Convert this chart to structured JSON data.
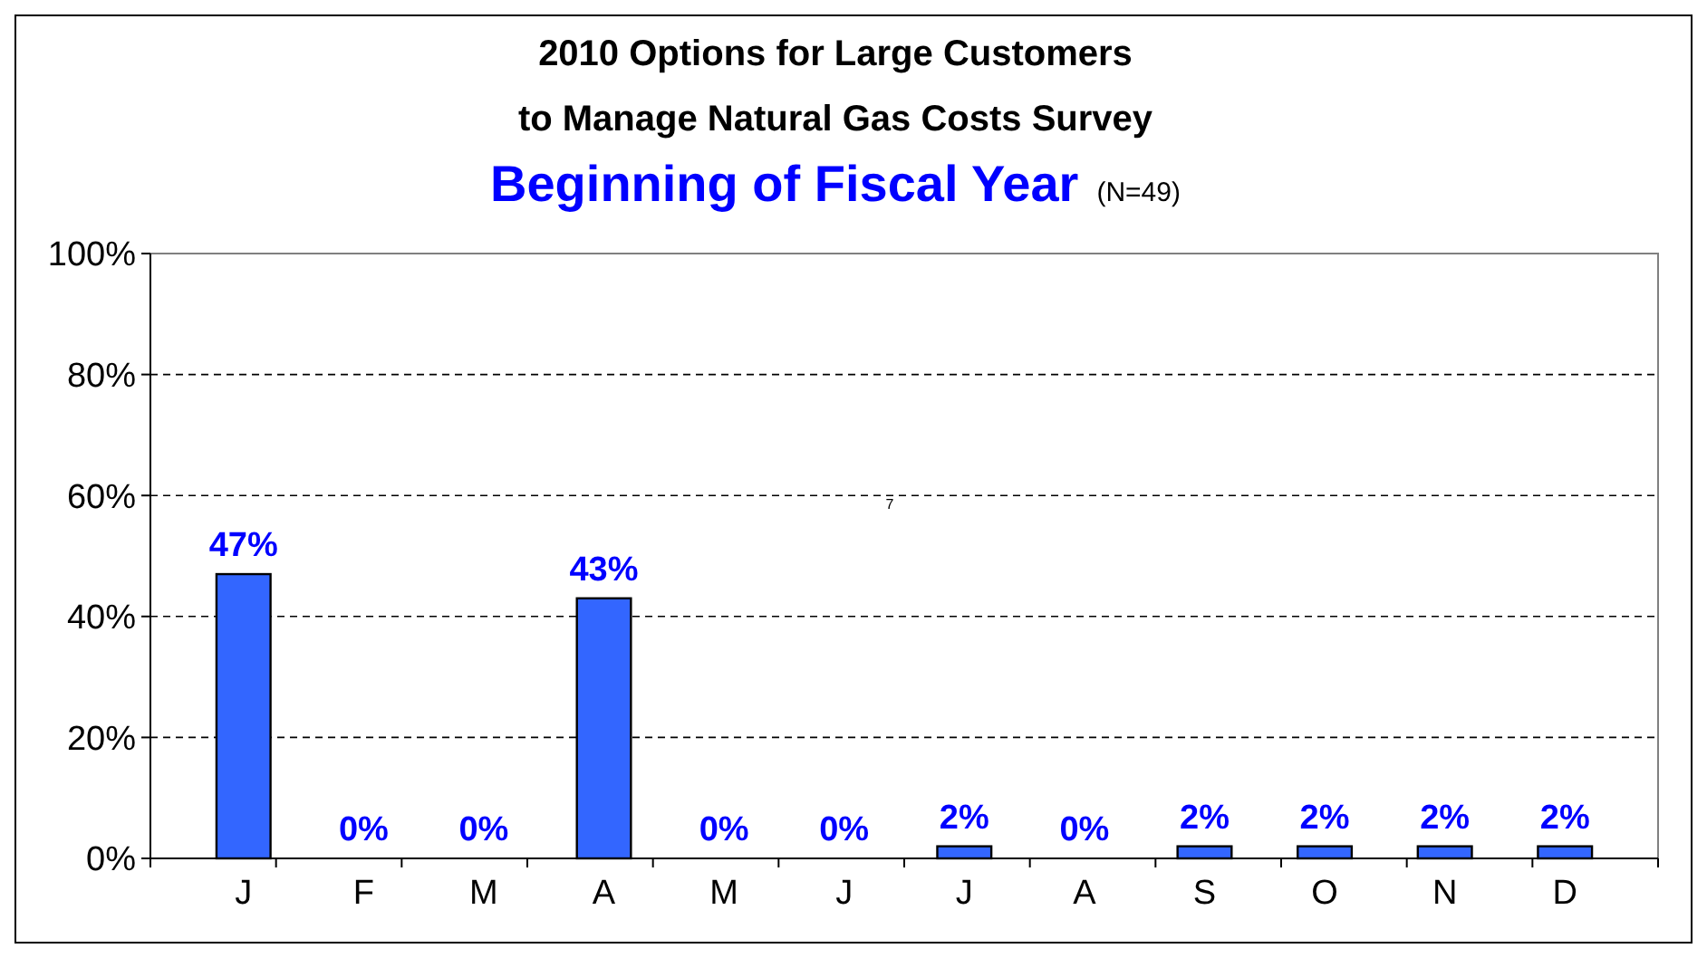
{
  "chart_data": {
    "type": "bar",
    "title": "2010 Options for Large Customers\nto Manage Natural Gas Costs Survey",
    "subtitle": "Beginning of Fiscal Year",
    "annotations": [
      "(N=49)",
      "7"
    ],
    "categories": [
      "J",
      "F",
      "M",
      "A",
      "M",
      "J",
      "J",
      "A",
      "S",
      "O",
      "N",
      "D"
    ],
    "values": [
      47,
      0,
      0,
      43,
      0,
      0,
      2,
      0,
      2,
      2,
      2,
      2
    ],
    "value_labels": [
      "47%",
      "0%",
      "0%",
      "43%",
      "0%",
      "0%",
      "2%",
      "0%",
      "2%",
      "2%",
      "2%",
      "2%"
    ],
    "color": "#3366ff",
    "ylim": [
      0,
      100
    ],
    "yticks": [
      {
        "value": 0,
        "label": "0%"
      },
      {
        "value": 20,
        "label": "20%"
      },
      {
        "value": 40,
        "label": "40%"
      },
      {
        "value": 60,
        "label": "60%"
      },
      {
        "value": 80,
        "label": "80%"
      },
      {
        "value": 100,
        "label": "100%"
      }
    ],
    "grid": "y"
  }
}
